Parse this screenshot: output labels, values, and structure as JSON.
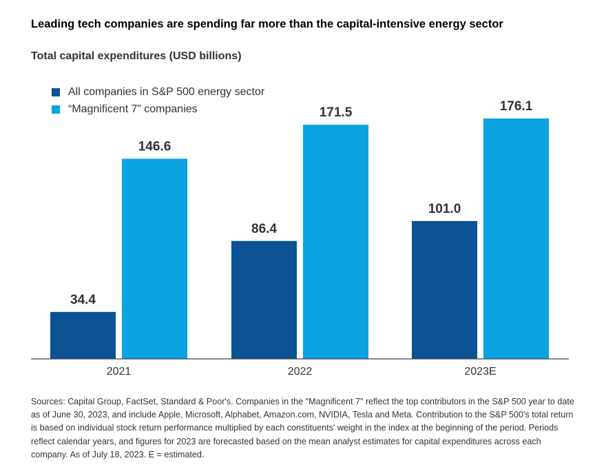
{
  "headline": "Leading tech companies are spending far more than the capital-intensive energy sector",
  "chart_data": {
    "type": "bar",
    "title": "Total capital expenditures (USD billions)",
    "categories": [
      "2021",
      "2022",
      "2023E"
    ],
    "series": [
      {
        "name": "All companies in S&P 500 energy sector",
        "values": [
          34.4,
          86.4,
          101.0
        ],
        "labels": [
          "34.4",
          "86.4",
          "101.0"
        ],
        "color": "#0b5394"
      },
      {
        "name": "“Magnificent 7” companies",
        "values": [
          146.6,
          171.5,
          176.1
        ],
        "labels": [
          "146.6",
          "171.5",
          "176.1"
        ],
        "color": "#0aa2e0"
      }
    ],
    "ylim": [
      0,
      176.1
    ],
    "legend_position": "top-left",
    "grid": false
  },
  "footnote": "Sources: Capital Group, FactSet, Standard & Poor's. Companies in the \"Magnificent 7\" reflect the top contributors in the S&P 500 year to date as of June 30, 2023, and include Apple, Microsoft, Alphabet, Amazon.com, NVIDIA, Tesla and Meta. Contribution to the S&P 500's total return is based on individual stock return performance multiplied by each constituents' weight in the index at the beginning of the period. Periods reflect calendar years, and figures for 2023 are forecasted based on the mean analyst estimates for capital expenditures across each company. As of July 18, 2023. E = estimated."
}
